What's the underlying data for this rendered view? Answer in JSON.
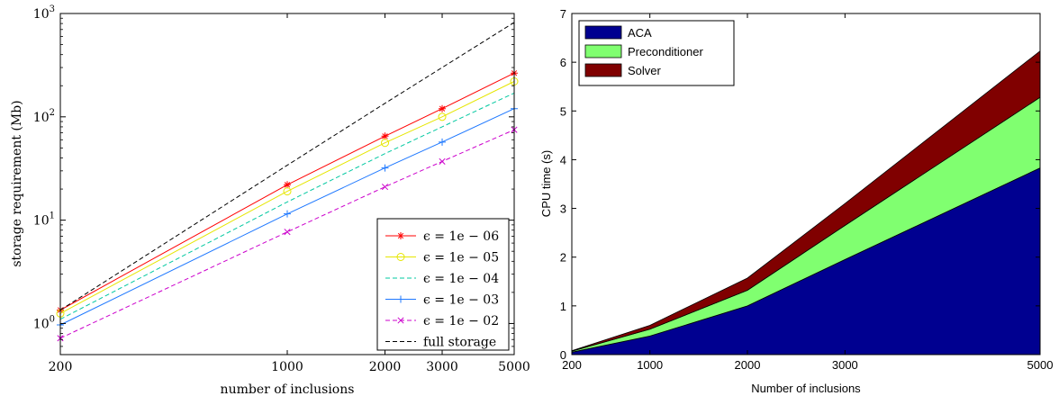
{
  "chart_data": [
    {
      "type": "line",
      "xscale": "log",
      "yscale": "log",
      "xlabel": "number of inclusions",
      "ylabel": "storage requirement (Mb)",
      "xlim": [
        200,
        5000
      ],
      "ylim": [
        0.5,
        1000
      ],
      "xticks": [
        "200",
        "1000",
        "2000",
        "3000",
        "5000"
      ],
      "xtick_values": [
        200,
        1000,
        2000,
        3000,
        5000
      ],
      "yticks": [
        {
          "base": "10",
          "exp": "0",
          "value": 1
        },
        {
          "base": "10",
          "exp": "1",
          "value": 10
        },
        {
          "base": "10",
          "exp": "2",
          "value": 100
        },
        {
          "base": "10",
          "exp": "3",
          "value": 1000
        }
      ],
      "x": [
        200,
        1000,
        2000,
        3000,
        5000
      ],
      "legend_position": "bottom-right",
      "series": [
        {
          "name": "ϵ = 1e − 06",
          "color": "#ff0000",
          "dash": "solid",
          "marker": "star",
          "values": [
            1.35,
            22,
            65,
            120,
            265
          ]
        },
        {
          "name": "ϵ = 1e − 05",
          "color": "#e6e600",
          "dash": "solid",
          "marker": "circle",
          "values": [
            1.25,
            19,
            56,
            100,
            220
          ]
        },
        {
          "name": "ϵ = 1e − 04",
          "color": "#00c8a0",
          "dash": "dashed",
          "marker": "none",
          "values": [
            1.1,
            15,
            44,
            80,
            170
          ]
        },
        {
          "name": "ϵ = 1e − 03",
          "color": "#1e78ff",
          "dash": "solid",
          "marker": "plus",
          "values": [
            0.97,
            11.5,
            32,
            57,
            120
          ]
        },
        {
          "name": "ϵ = 1e − 02",
          "color": "#cc00cc",
          "dash": "dashed",
          "marker": "x",
          "values": [
            0.72,
            7.7,
            21,
            37,
            75
          ]
        },
        {
          "name": "full storage",
          "color": "#000000",
          "dash": "dashed",
          "marker": "none",
          "values": [
            1.35,
            34,
            135,
            300,
            820
          ]
        }
      ]
    },
    {
      "type": "area",
      "stacked": true,
      "xlabel": "Number of inclusions",
      "ylabel": "CPU time (s)",
      "xlim": [
        200,
        5000
      ],
      "ylim": [
        0,
        7
      ],
      "xticks": [
        "200",
        "1000",
        "2000",
        "3000",
        "5000"
      ],
      "xtick_values": [
        200,
        1000,
        2000,
        3000,
        5000
      ],
      "yticks": [
        "0",
        "1",
        "2",
        "3",
        "4",
        "5",
        "6",
        "7"
      ],
      "x": [
        200,
        1000,
        2000,
        3000,
        5000
      ],
      "legend_position": "top-left",
      "series": [
        {
          "name": "ACA",
          "color": "#000090",
          "values": [
            0.05,
            0.38,
            1.0,
            1.95,
            3.83
          ]
        },
        {
          "name": "Preconditioner",
          "color": "#80ff70",
          "values": [
            0.02,
            0.14,
            0.32,
            0.7,
            1.45
          ]
        },
        {
          "name": "Solver",
          "color": "#800000",
          "values": [
            0.01,
            0.08,
            0.25,
            0.45,
            0.95
          ]
        }
      ]
    }
  ]
}
